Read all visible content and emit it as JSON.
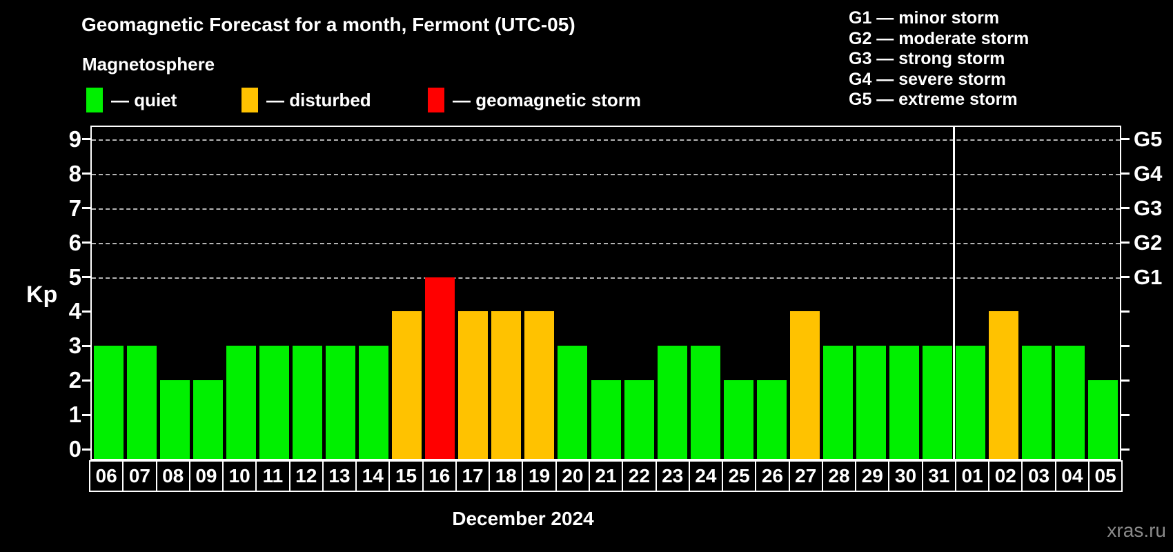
{
  "title": "Geomagnetic Forecast for a month, Fermont (UTC-05)",
  "subtitle": "Magnetosphere",
  "legend": {
    "items": [
      {
        "key": "quiet",
        "label": "— quiet",
        "color": "#00F000"
      },
      {
        "key": "disturbed",
        "label": "— disturbed",
        "color": "#FFC200"
      },
      {
        "key": "storm",
        "label": "— geomagnetic storm",
        "color": "#FF0000"
      }
    ]
  },
  "storm_scale": {
    "items": [
      {
        "text": "G1 — minor storm"
      },
      {
        "text": "G2 — moderate storm"
      },
      {
        "text": "G3 — strong storm"
      },
      {
        "text": "G4 — severe storm"
      },
      {
        "text": "G5 — extreme storm"
      }
    ]
  },
  "axis": {
    "kp_title": "Kp",
    "month_label": "December 2024"
  },
  "watermark": "xras.ru",
  "chart_data": {
    "type": "bar",
    "title": "Geomagnetic Forecast for a month, Fermont (UTC-05)",
    "xlabel": "December 2024",
    "ylabel": "Kp",
    "ylim": [
      0,
      9.4
    ],
    "yticks": [
      0,
      1,
      2,
      3,
      4,
      5,
      6,
      7,
      8,
      9
    ],
    "gridlines_at": [
      5,
      6,
      7,
      8,
      9
    ],
    "grid": "dashed horizontal at G-levels only",
    "right_axis_labels": [
      {
        "value": 5,
        "label": "G1"
      },
      {
        "value": 6,
        "label": "G2"
      },
      {
        "value": 7,
        "label": "G3"
      },
      {
        "value": 8,
        "label": "G4"
      },
      {
        "value": 9,
        "label": "G5"
      }
    ],
    "month_boundary_after_index": 25,
    "colors": {
      "quiet": "#00F000",
      "disturbed": "#FFC200",
      "storm": "#FF0000"
    },
    "categories": [
      "06",
      "07",
      "08",
      "09",
      "10",
      "11",
      "12",
      "13",
      "14",
      "15",
      "16",
      "17",
      "18",
      "19",
      "20",
      "21",
      "22",
      "23",
      "24",
      "25",
      "26",
      "27",
      "28",
      "29",
      "30",
      "31",
      "01",
      "02",
      "03",
      "04",
      "05"
    ],
    "values": [
      3,
      3,
      2,
      2,
      3,
      3,
      3,
      3,
      3,
      4,
      5,
      4,
      4,
      4,
      3,
      2,
      2,
      3,
      3,
      2,
      2,
      4,
      3,
      3,
      3,
      3,
      3,
      4,
      3,
      3,
      2
    ],
    "statuses": [
      "quiet",
      "quiet",
      "quiet",
      "quiet",
      "quiet",
      "quiet",
      "quiet",
      "quiet",
      "quiet",
      "disturbed",
      "storm",
      "disturbed",
      "disturbed",
      "disturbed",
      "quiet",
      "quiet",
      "quiet",
      "quiet",
      "quiet",
      "quiet",
      "quiet",
      "disturbed",
      "quiet",
      "quiet",
      "quiet",
      "quiet",
      "quiet",
      "disturbed",
      "quiet",
      "quiet",
      "quiet"
    ]
  }
}
